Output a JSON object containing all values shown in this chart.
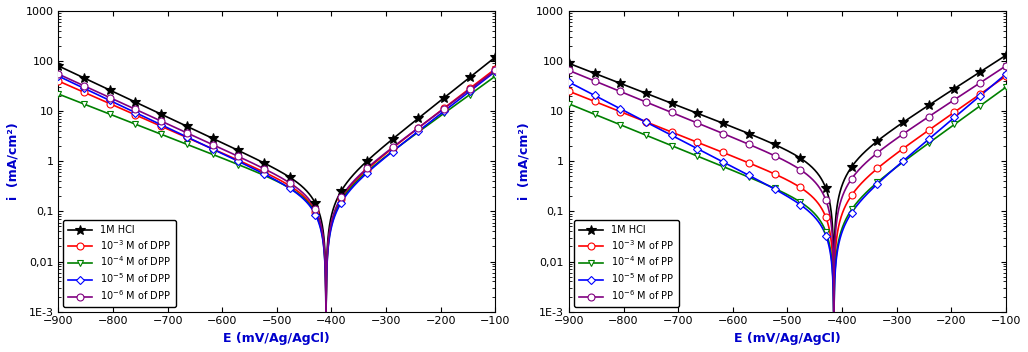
{
  "xlim": [
    -900,
    -100
  ],
  "ylim_low": 0.001,
  "ylim_high": 1000,
  "xlabel": "E (mV/Ag/AgCl)",
  "ylabel_DPP": "i  (mA/cm²)",
  "ylabel_PP": "i  (mA/cm²)",
  "xlabel_color": "#0000CC",
  "ylabel_color": "#0000CC",
  "ytick_vals": [
    0.001,
    0.01,
    0.1,
    1,
    10,
    100,
    1000
  ],
  "ytick_labels": [
    "1E-3",
    "0,01",
    "0,1",
    "1",
    "10",
    "100",
    "1000"
  ],
  "xticks": [
    -900,
    -800,
    -700,
    -600,
    -500,
    -400,
    -300,
    -200,
    -100
  ],
  "DPP": {
    "corr_potential": -410,
    "series": [
      {
        "label": "1M HCl",
        "color": "black",
        "marker": "*",
        "markersize": 7,
        "i_cathodic_900": 80,
        "i_corr": 0.25,
        "i_anodic_100": 120
      },
      {
        "label": "10$^{-3}$ M of DPP",
        "color": "red",
        "marker": "o",
        "markersize": 5,
        "i_cathodic_900": 40,
        "i_corr": 0.18,
        "i_anodic_100": 70
      },
      {
        "label": "10$^{-4}$ M of DPP",
        "color": "green",
        "marker": "v",
        "markersize": 5,
        "i_cathodic_900": 22,
        "i_corr": 0.18,
        "i_anodic_100": 50
      },
      {
        "label": "10$^{-5}$ M of DPP",
        "color": "blue",
        "marker": "D",
        "markersize": 4,
        "i_cathodic_900": 50,
        "i_corr": 0.15,
        "i_anodic_100": 62
      },
      {
        "label": "10$^{-6}$ M of DPP",
        "color": "purple",
        "marker": "o",
        "markersize": 5,
        "i_cathodic_900": 55,
        "i_corr": 0.2,
        "i_anodic_100": 65
      }
    ]
  },
  "PP": {
    "corr_potential": -415,
    "series": [
      {
        "label": "1M HCl",
        "color": "black",
        "marker": "*",
        "markersize": 7,
        "i_cathodic_900": 90,
        "i_corr": 0.8,
        "i_anodic_100": 130
      },
      {
        "label": "10$^{-3}$ M of PP",
        "color": "red",
        "marker": "o",
        "markersize": 5,
        "i_cathodic_900": 25,
        "i_corr": 0.2,
        "i_anodic_100": 50
      },
      {
        "label": "10$^{-4}$ M of PP",
        "color": "green",
        "marker": "v",
        "markersize": 5,
        "i_cathodic_900": 14,
        "i_corr": 0.1,
        "i_anodic_100": 30
      },
      {
        "label": "10$^{-5}$ M of PP",
        "color": "blue",
        "marker": "D",
        "markersize": 4,
        "i_cathodic_900": 38,
        "i_corr": 0.07,
        "i_anodic_100": 55
      },
      {
        "label": "10$^{-6}$ M of PP",
        "color": "purple",
        "marker": "o",
        "markersize": 5,
        "i_cathodic_900": 65,
        "i_corr": 0.45,
        "i_anodic_100": 80
      }
    ]
  }
}
